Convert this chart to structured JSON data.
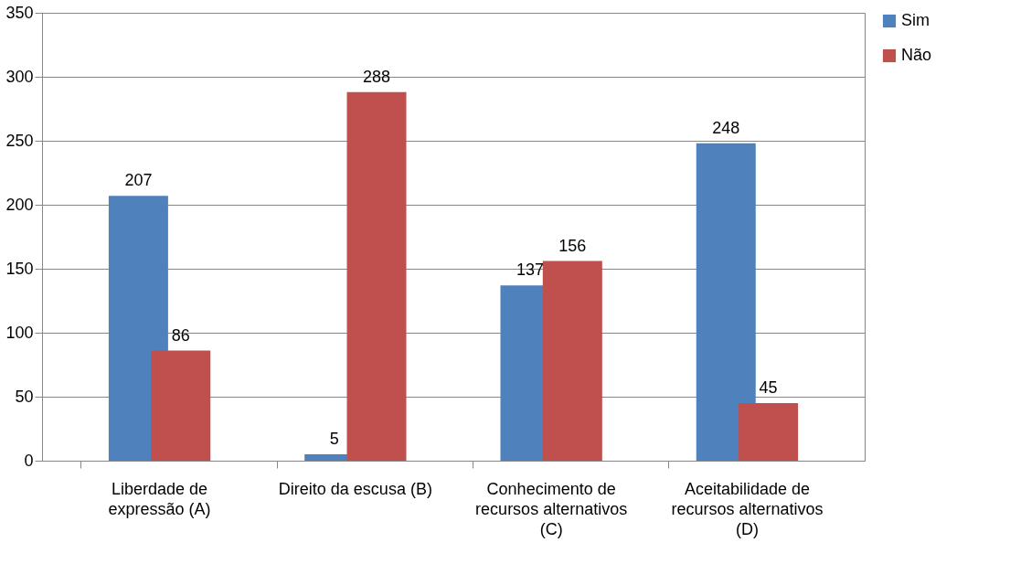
{
  "chart_data": {
    "type": "bar",
    "categories": [
      "Liberdade de expressão (A)",
      "Direito da escusa (B)",
      "Conhecimento de recursos alternativos (C)",
      "Aceitabilidade de recursos alternativos (D)"
    ],
    "series": [
      {
        "name": "Sim",
        "color": "#4f81bd",
        "values": [
          207,
          5,
          137,
          248
        ]
      },
      {
        "name": "Não",
        "color": "#c0504d",
        "values": [
          86,
          288,
          156,
          45
        ]
      }
    ],
    "ylim": [
      0,
      350
    ],
    "yticks": [
      0,
      50,
      100,
      150,
      200,
      250,
      300,
      350
    ],
    "grid": "y",
    "legend": "right",
    "data_labels": true
  }
}
